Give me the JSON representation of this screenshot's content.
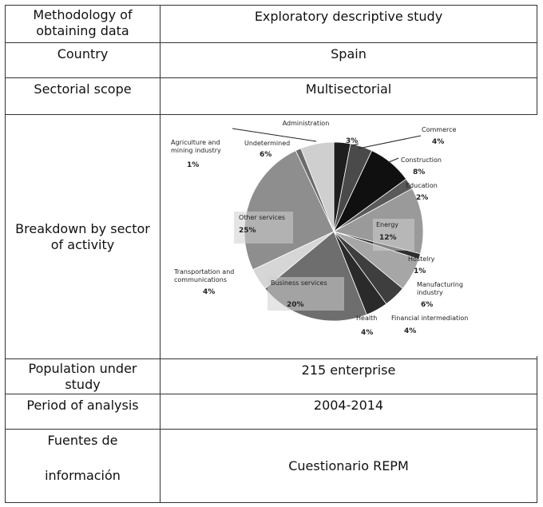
{
  "rows": {
    "methodology": {
      "label_line1": "Methodology of",
      "label_line2": "obtaining data",
      "value": "Exploratory descriptive study"
    },
    "country": {
      "label": "Country",
      "value": "Spain"
    },
    "scope": {
      "label": "Sectorial scope",
      "value": "Multisectorial"
    },
    "breakdown": {
      "label_line1": "Breakdown by sector",
      "label_line2": "of activity"
    },
    "population": {
      "label_line1": "Population under",
      "label_line2": "study",
      "value": "215 enterprise"
    },
    "period": {
      "label": "Period of analysis",
      "value": "2004-2014"
    },
    "fuentes": {
      "label_line1": "Fuentes de",
      "label_line2": "información",
      "value": "Cuestionario REPM"
    }
  },
  "chart_data": {
    "type": "pie",
    "categories": [
      "Administration",
      "Commerce",
      "Construction",
      "Education",
      "Energy",
      "Hostelry",
      "Manufacturing industry",
      "Financial intermediation",
      "Health",
      "Business services",
      "Transportation and communications",
      "Other services",
      "Agriculture and mining industry",
      "Undetermined"
    ],
    "values": [
      3,
      4,
      8,
      2,
      12,
      1,
      6,
      4,
      4,
      20,
      4,
      25,
      1,
      6
    ],
    "value_labels": [
      "3%",
      "4%",
      "8%",
      "2%",
      "12%",
      "1%",
      "6%",
      "4%",
      "4%",
      "20%",
      "4%",
      "25%",
      "1%",
      "6%"
    ],
    "colors": [
      "#1e1e1e",
      "#4a4a4a",
      "#101010",
      "#5a5a5a",
      "#9a9a9a",
      "#2e2e2e",
      "#a6a6a6",
      "#3e3e3e",
      "#2a2a2a",
      "#6e6e6e",
      "#d6d6d6",
      "#8e8e8e",
      "#6a6a6a",
      "#cfcfcf"
    ],
    "legend": "none"
  }
}
